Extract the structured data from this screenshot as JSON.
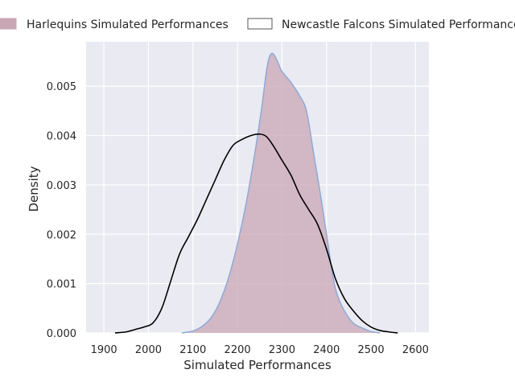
{
  "chart_data": {
    "type": "area",
    "title": "",
    "xlabel": "Simulated Performances",
    "ylabel": "Density",
    "xlim": [
      1860,
      2630
    ],
    "ylim": [
      0,
      0.0059
    ],
    "x_ticks": [
      1900,
      2000,
      2100,
      2200,
      2300,
      2400,
      2500,
      2600
    ],
    "y_ticks": [
      0.0,
      0.001,
      0.002,
      0.003,
      0.004,
      0.005
    ],
    "y_tick_labels": [
      "0.000",
      "0.001",
      "0.002",
      "0.003",
      "0.004",
      "0.005"
    ],
    "x_tick_labels": [
      "1900",
      "2000",
      "2100",
      "2200",
      "2300",
      "2400",
      "2500",
      "2600"
    ],
    "grid": true,
    "legend_position": "top",
    "series": [
      {
        "name": "Harlequins Simulated Performances",
        "style": "filled",
        "fill": "#c9a6b4",
        "line": "#8eaad6",
        "points": [
          [
            2075,
            0.0
          ],
          [
            2100,
            4e-05
          ],
          [
            2120,
            0.00013
          ],
          [
            2140,
            0.0003
          ],
          [
            2160,
            0.00062
          ],
          [
            2180,
            0.00112
          ],
          [
            2200,
            0.0018
          ],
          [
            2220,
            0.00265
          ],
          [
            2240,
            0.0037
          ],
          [
            2255,
            0.0046
          ],
          [
            2265,
            0.0053
          ],
          [
            2272,
            0.0056
          ],
          [
            2280,
            0.00566
          ],
          [
            2290,
            0.0055
          ],
          [
            2300,
            0.0053
          ],
          [
            2320,
            0.00508
          ],
          [
            2340,
            0.0048
          ],
          [
            2355,
            0.0045
          ],
          [
            2370,
            0.0037
          ],
          [
            2390,
            0.0026
          ],
          [
            2405,
            0.0017
          ],
          [
            2420,
            0.0009
          ],
          [
            2440,
            0.00045
          ],
          [
            2460,
            0.0002
          ],
          [
            2480,
            0.0001
          ],
          [
            2500,
            3e-05
          ],
          [
            2520,
            0.0
          ]
        ]
      },
      {
        "name": "Newcastle Falcons Simulated Performances",
        "style": "line",
        "fill": "none",
        "line": "#000000",
        "points": [
          [
            1925,
            0.0
          ],
          [
            1950,
            2e-05
          ],
          [
            1970,
            7e-05
          ],
          [
            1990,
            0.00012
          ],
          [
            2010,
            0.0002
          ],
          [
            2030,
            0.0005
          ],
          [
            2050,
            0.00105
          ],
          [
            2070,
            0.0016
          ],
          [
            2090,
            0.00195
          ],
          [
            2110,
            0.0023
          ],
          [
            2130,
            0.0027
          ],
          [
            2150,
            0.0031
          ],
          [
            2170,
            0.0035
          ],
          [
            2190,
            0.0038
          ],
          [
            2210,
            0.00392
          ],
          [
            2230,
            0.004
          ],
          [
            2250,
            0.00403
          ],
          [
            2265,
            0.00398
          ],
          [
            2280,
            0.0038
          ],
          [
            2300,
            0.0035
          ],
          [
            2320,
            0.0032
          ],
          [
            2340,
            0.0028
          ],
          [
            2360,
            0.0025
          ],
          [
            2380,
            0.0022
          ],
          [
            2400,
            0.0017
          ],
          [
            2420,
            0.0011
          ],
          [
            2440,
            0.0007
          ],
          [
            2460,
            0.00045
          ],
          [
            2480,
            0.00025
          ],
          [
            2500,
            0.00012
          ],
          [
            2520,
            5e-05
          ],
          [
            2540,
            2e-05
          ],
          [
            2560,
            0.0
          ]
        ]
      }
    ]
  }
}
